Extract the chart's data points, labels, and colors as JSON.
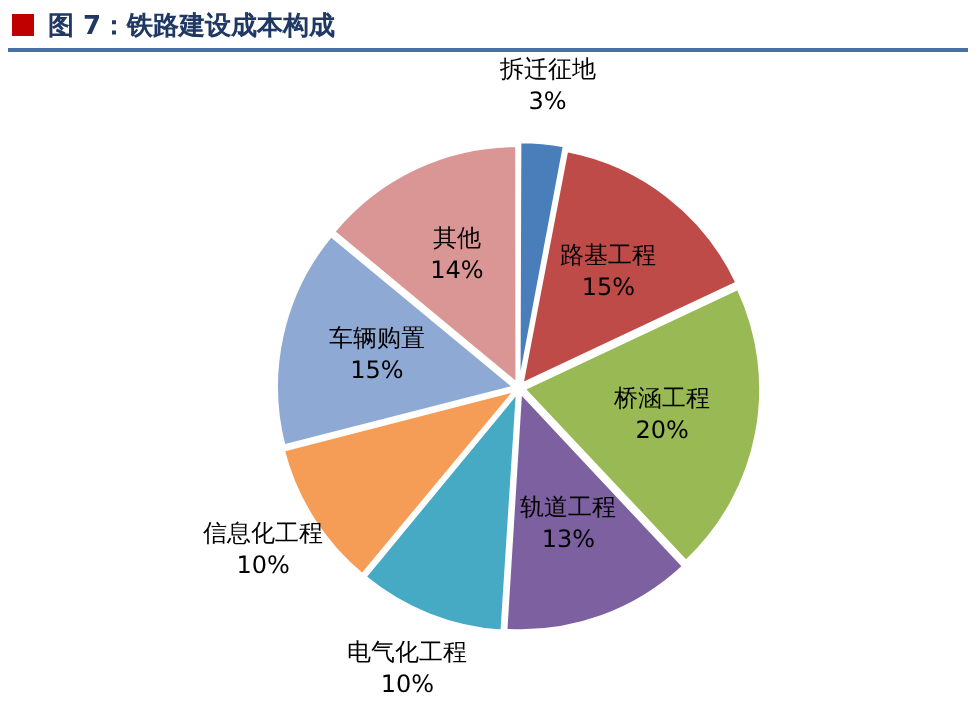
{
  "chart_data": {
    "type": "pie",
    "title": "图 7：铁路建设成本构成",
    "categories": [
      "拆迁征地",
      "路基工程",
      "桥涵工程",
      "轨道工程",
      "电气化工程",
      "信息化工程",
      "车辆购置",
      "其他"
    ],
    "values": [
      3,
      15,
      20,
      13,
      10,
      10,
      15,
      14
    ],
    "colors": [
      "#4a7ebb",
      "#be4b48",
      "#98b954",
      "#7d60a0",
      "#46aac5",
      "#f59d56",
      "#8fa9d5",
      "#d99694"
    ],
    "value_labels": [
      "3%",
      "15%",
      "20%",
      "13%",
      "10%",
      "10%",
      "15%",
      "14%"
    ],
    "legend": false
  }
}
